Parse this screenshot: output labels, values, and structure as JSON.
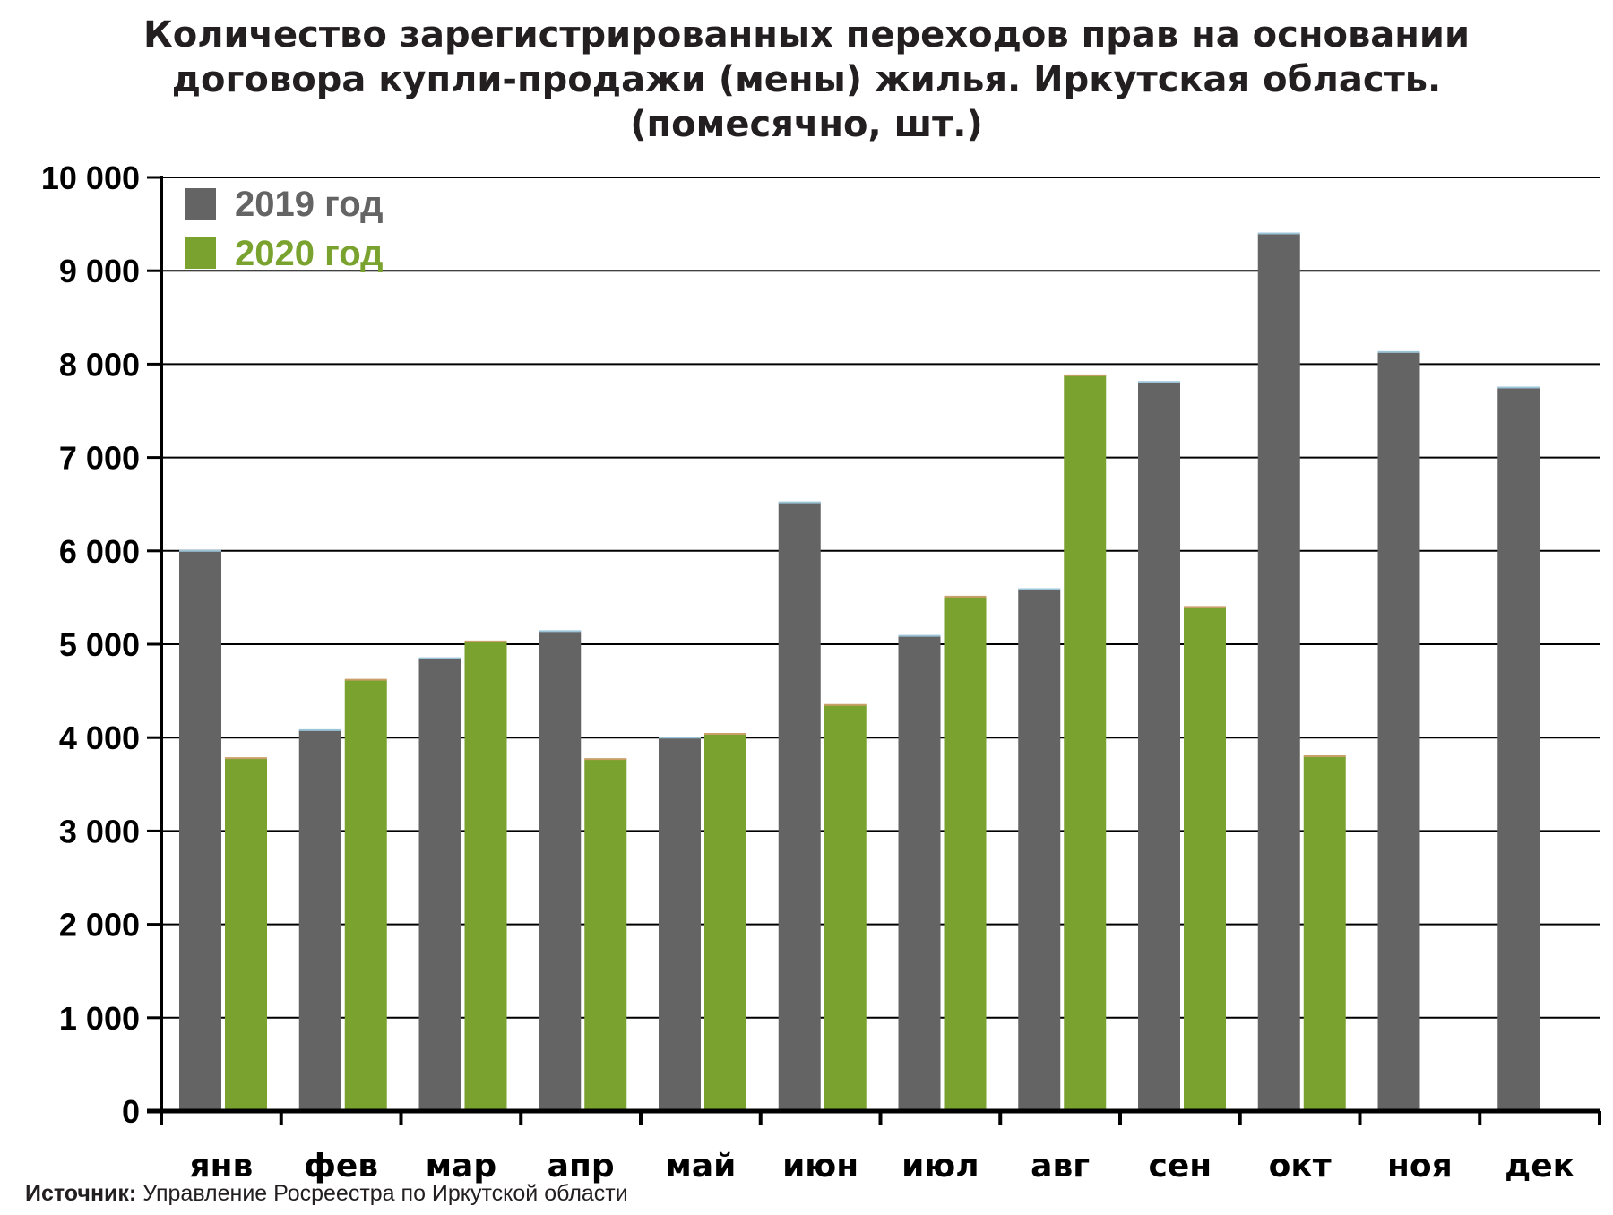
{
  "chart_data": {
    "type": "bar",
    "title_lines": [
      "Количество зарегистрированных переходов прав на основании",
      "договора купли-продажи (мены) жилья. Иркутская область.",
      "(помесячно, шт.)"
    ],
    "categories": [
      "янв",
      "фев",
      "мар",
      "апр",
      "май",
      "июн",
      "июл",
      "авг",
      "сен",
      "окт",
      "ноя",
      "дек"
    ],
    "series": [
      {
        "name": "2019 год",
        "color": "#646464",
        "values": [
          6000,
          4080,
          4850,
          5140,
          4000,
          6520,
          5090,
          5590,
          7810,
          9400,
          8130,
          7750
        ]
      },
      {
        "name": "2020 год",
        "color": "#7aa22e",
        "values": [
          3780,
          4620,
          5030,
          3770,
          4040,
          4350,
          5510,
          7880,
          5400,
          3800,
          null,
          null
        ]
      }
    ],
    "yticks": [
      "0",
      "1 000",
      "2 000",
      "3 000",
      "4 000",
      "5 000",
      "6 000",
      "7 000",
      "8 000",
      "9 000",
      "10 000"
    ],
    "ylim": [
      0,
      10000
    ],
    "legend_position": "top-left",
    "grid": true
  },
  "source": {
    "label": "Источник:",
    "text": "Управление Росреестра по Иркутской области"
  }
}
